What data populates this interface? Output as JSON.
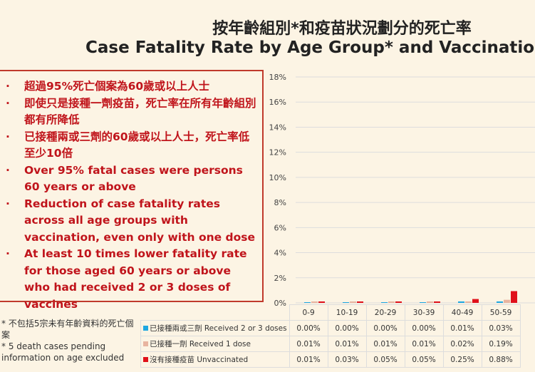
{
  "title_zh": "按年齡組別*和疫苗狀況劃分的死亡率",
  "title_en": "Case Fatality Rate by Age Group* and Vaccination",
  "bullets": [
    "超過95%死亡個案為60歲或以上人士",
    "即使只是接種一劑疫苗，死亡率在所有年齡組別都有所降低",
    "已接種兩或三劑的60歲或以上人士，死亡率低至少10倍",
    "Over 95% fatal cases were persons 60 years or above",
    "Reduction of case fatality rates across all age groups with vaccination, even only with one dose",
    "At least 10 times lower fatality rate for those aged 60 years or above who had received 2 or 3 doses of vaccines"
  ],
  "bullet_mark": "·",
  "notes": [
    "* 不包括5宗未有年齡資料的死亡個案",
    "* 5 death cases pending information on age excluded"
  ],
  "chart_data": {
    "type": "bar",
    "categories": [
      "0-9",
      "10-19",
      "20-29",
      "30-39",
      "40-49",
      "50-59"
    ],
    "yticks": [
      "0%",
      "2%",
      "4%",
      "6%",
      "8%",
      "10%",
      "12%",
      "14%",
      "16%",
      "18%"
    ],
    "ylim": [
      0,
      18
    ],
    "grid": true,
    "series": [
      {
        "name": "已接種兩或三劑 Received 2 or 3 doses",
        "color": "#1ea7e1",
        "values": [
          0.0,
          0.0,
          0.0,
          0.0,
          0.01,
          0.03
        ],
        "labels": [
          "0.00%",
          "0.00%",
          "0.00%",
          "0.00%",
          "0.01%",
          "0.03%"
        ]
      },
      {
        "name": "已接種一劑 Received 1 dose",
        "color": "#e8b4a0",
        "values": [
          0.01,
          0.01,
          0.01,
          0.01,
          0.02,
          0.19
        ],
        "labels": [
          "0.01%",
          "0.01%",
          "0.01%",
          "0.01%",
          "0.02%",
          "0.19%"
        ]
      },
      {
        "name": "沒有接種疫苗 Unvaccinated",
        "color": "#e0101a",
        "values": [
          0.01,
          0.03,
          0.05,
          0.05,
          0.25,
          0.88
        ],
        "labels": [
          "0.01%",
          "0.03%",
          "0.05%",
          "0.05%",
          "0.25%",
          "0.88%"
        ]
      }
    ]
  }
}
